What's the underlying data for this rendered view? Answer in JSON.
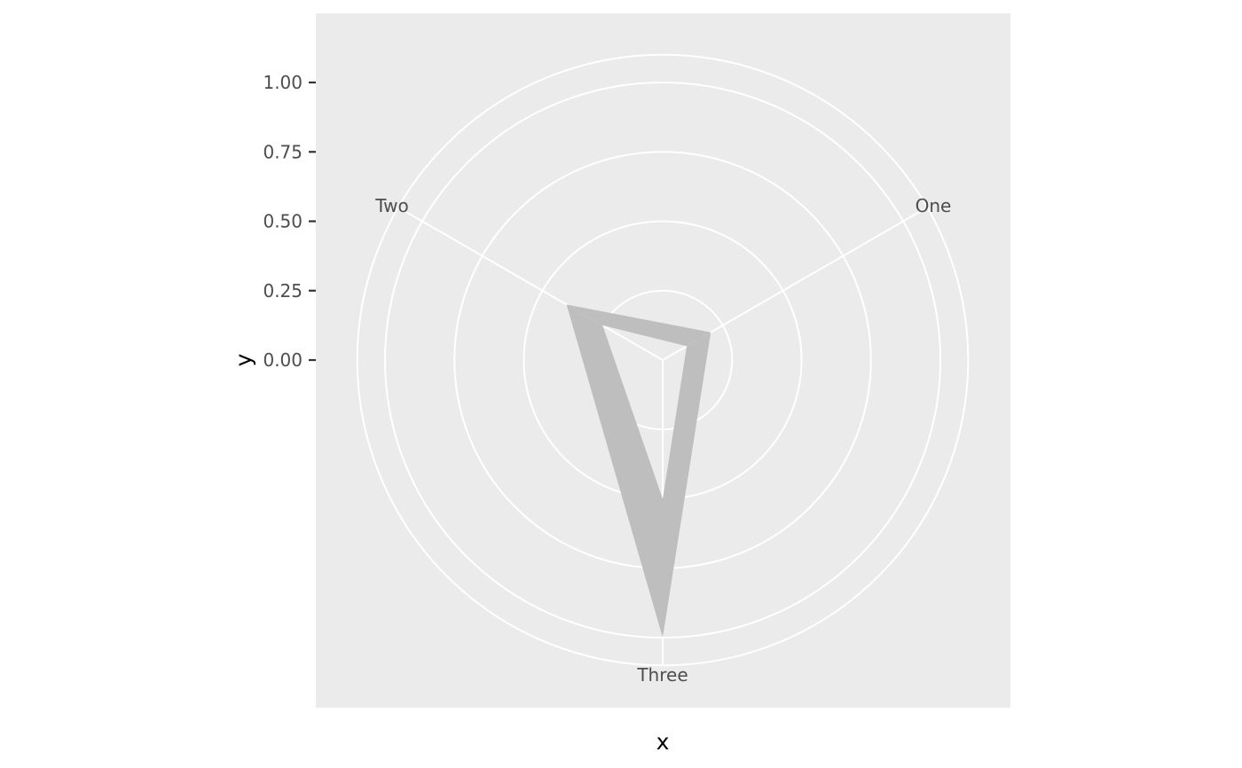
{
  "chart_data": {
    "type": "radar",
    "xlabel": "x",
    "ylabel": "y",
    "categories": [
      "One",
      "Two",
      "Three"
    ],
    "y_ticks": [
      0.0,
      0.25,
      0.5,
      0.75,
      1.0
    ],
    "y_tick_labels": [
      "0.00",
      "0.25",
      "0.50",
      "0.75",
      "1.00"
    ],
    "ylim": [
      0,
      1.1
    ],
    "grid": true,
    "series": [
      {
        "lower": [
          0.1,
          0.25,
          0.5
        ],
        "upper": [
          0.2,
          0.4,
          1.0
        ]
      }
    ],
    "colors": {
      "panel": "#EBEBEB",
      "grid": "#FFFFFF",
      "ribbon": "#BEBEBE",
      "text": "#4D4D4D"
    }
  }
}
